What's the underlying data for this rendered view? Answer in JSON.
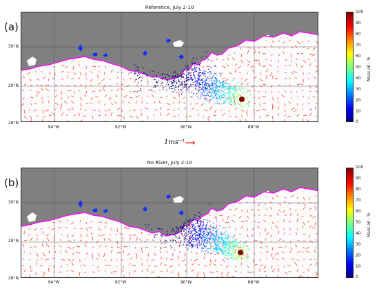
{
  "panels": [
    {
      "label": "(a)",
      "title": "Reference, July 2-10"
    },
    {
      "label": "(b)",
      "title": "No River, July 2-10"
    }
  ],
  "lat_ticks": [
    "30°N",
    "29°N",
    "28°N"
  ],
  "lon_ticks": [
    "94°W",
    "92°W",
    "90°W",
    "88°W"
  ],
  "colorbar": {
    "ticks": [
      "100",
      "90",
      "80",
      "70",
      "60",
      "50",
      "40",
      "30",
      "20",
      "10",
      "0"
    ],
    "label": "Mass oil - %",
    "colormap": "jet"
  },
  "scale_reference": {
    "text": "1ms⁻¹",
    "arrow_color": "#ff2a1a"
  },
  "colors": {
    "land": "#808080",
    "current_vectors": "#ff2a1a",
    "coastline": "#ff00ff",
    "oil_low": "#00007f",
    "source_marker": "#7f0000"
  }
}
